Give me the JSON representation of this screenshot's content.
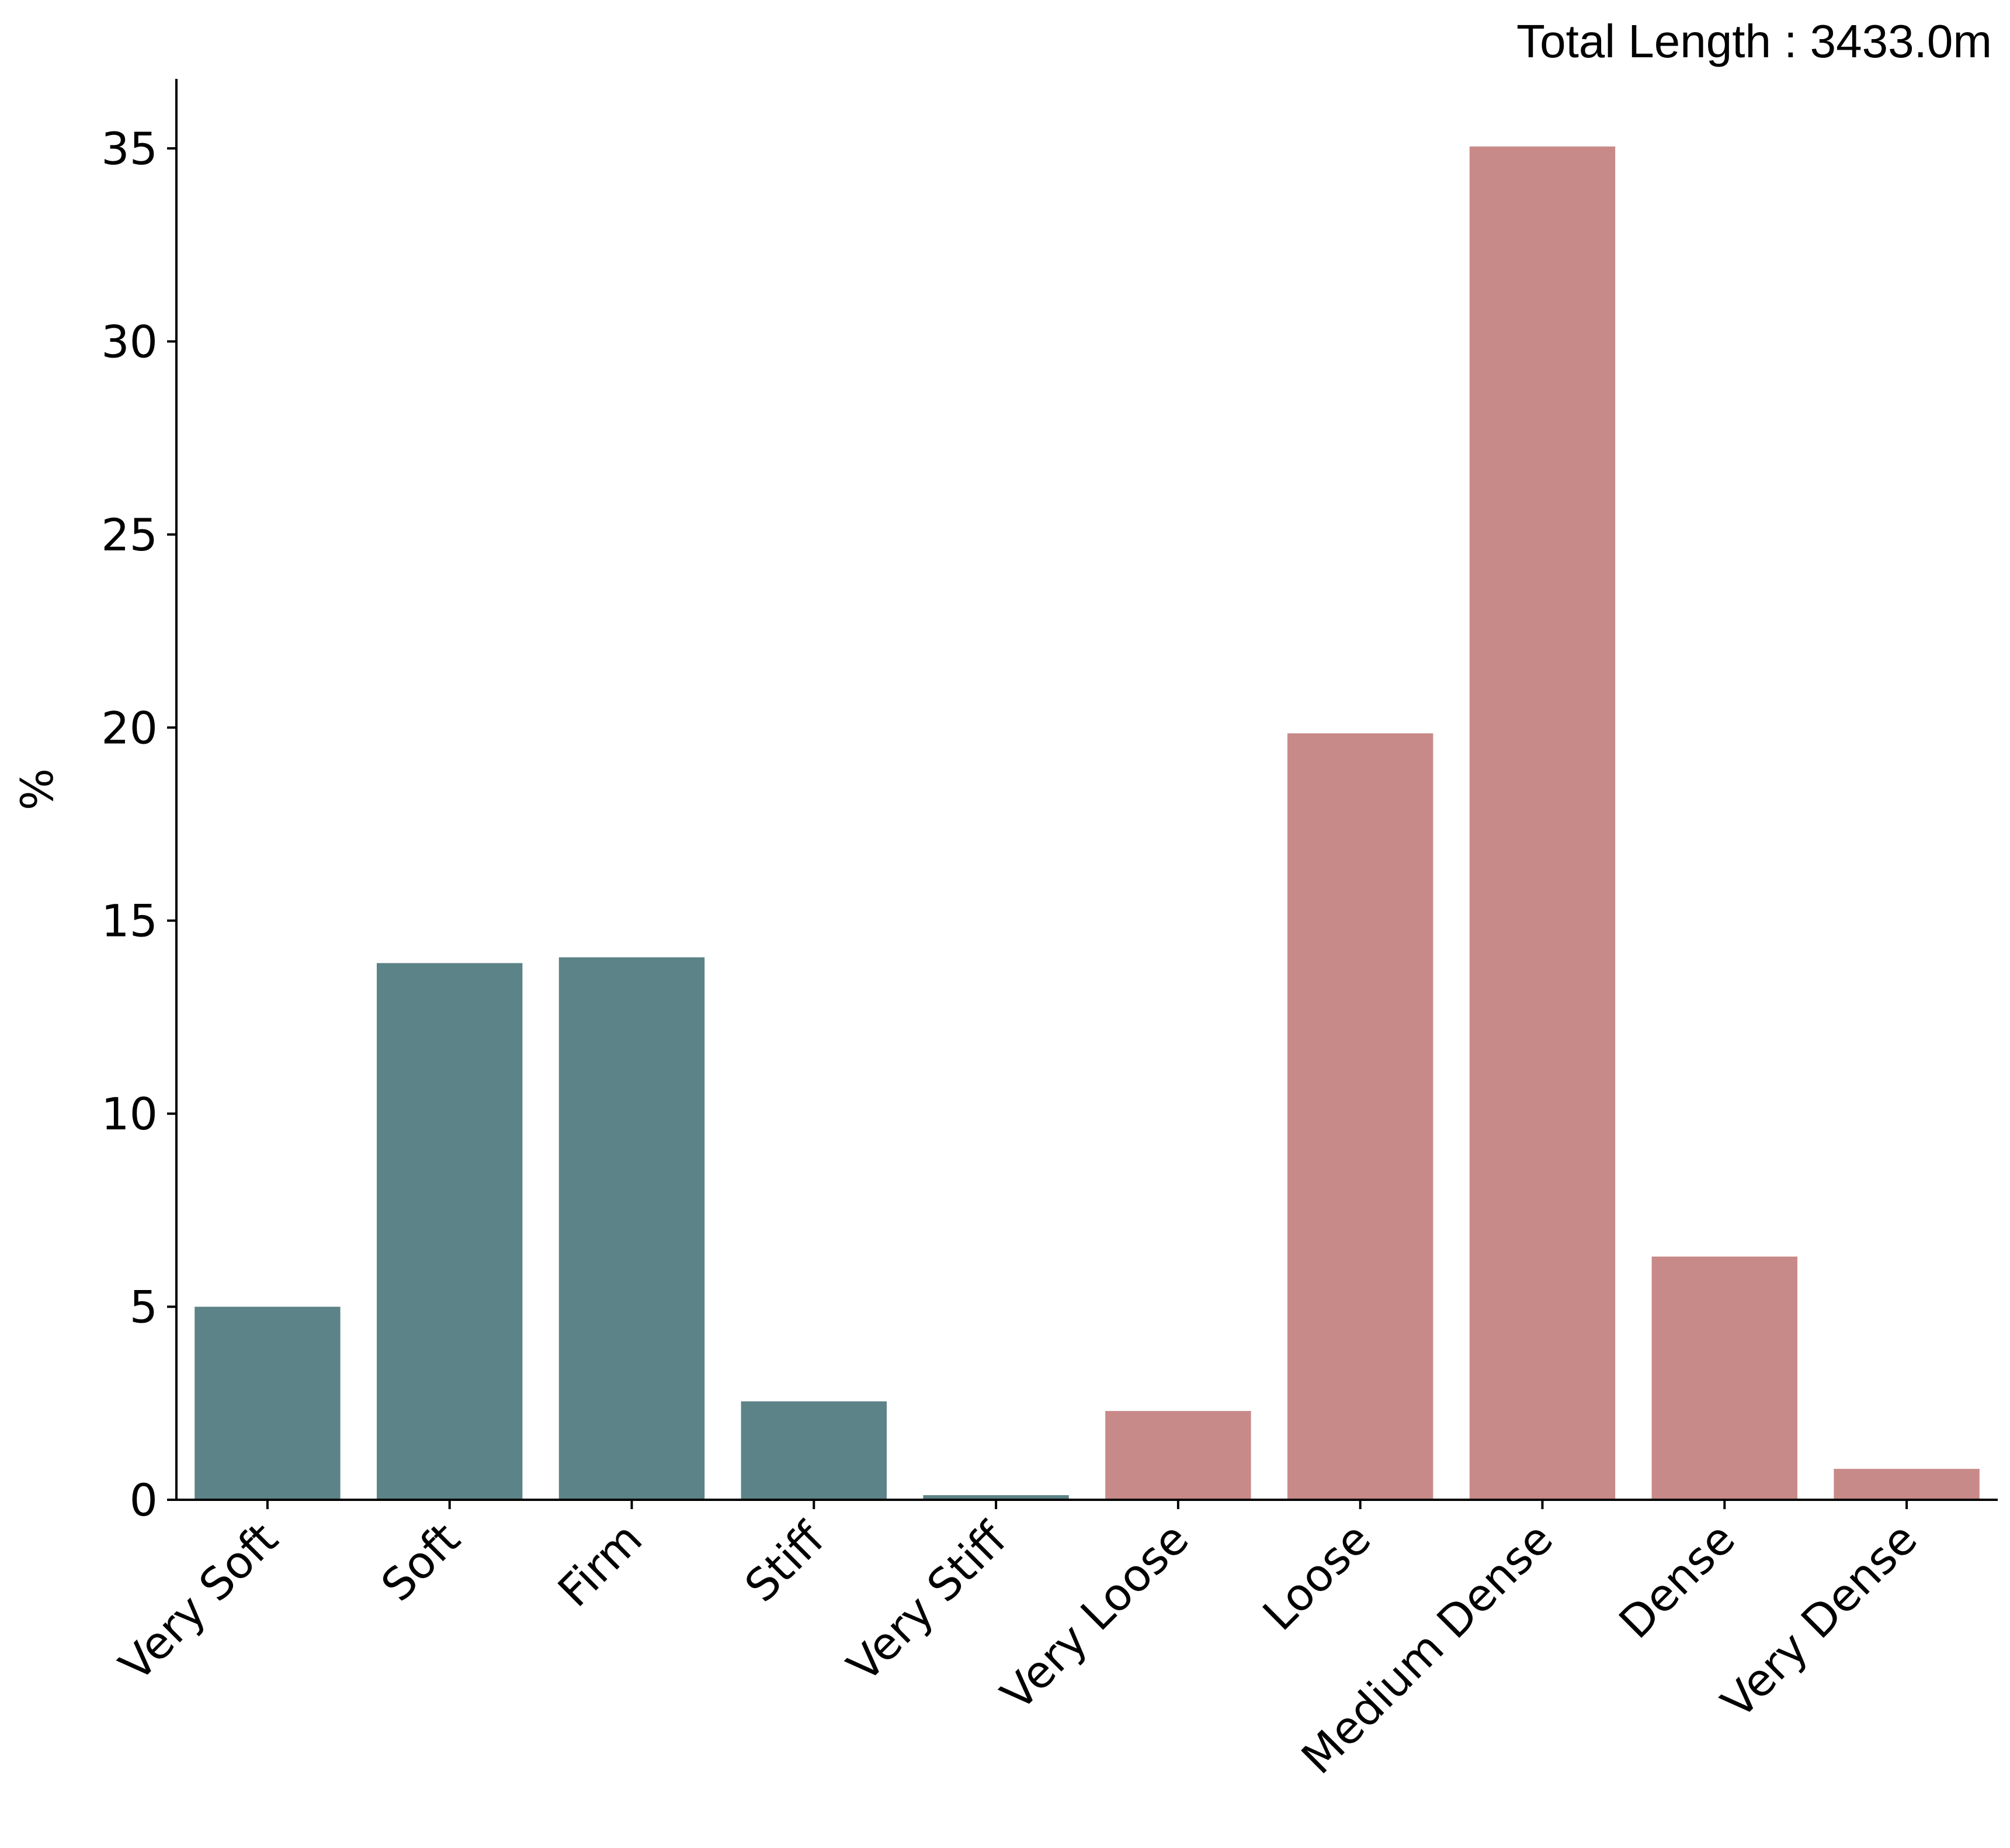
{
  "chart_data": {
    "type": "bar",
    "categories": [
      "Very Soft",
      "Soft",
      "Firm",
      "Stiff",
      "Very Stiff",
      "Very Loose",
      "Loose",
      "Medium Dense",
      "Dense",
      "Very Dense"
    ],
    "values": [
      5.0,
      13.9,
      14.05,
      2.55,
      0.12,
      2.3,
      19.85,
      35.05,
      6.3,
      0.8
    ],
    "bar_colors": [
      "#5c8387",
      "#5c8387",
      "#5c8387",
      "#5c8387",
      "#5c8387",
      "#c88a89",
      "#c88a89",
      "#c88a89",
      "#c88a89",
      "#c88a89"
    ],
    "ylabel": "%",
    "xlabel": "",
    "annotation": "Total Length : 3433.0m",
    "ylim": [
      0,
      36.8
    ],
    "yticks": [
      "0",
      "5",
      "10",
      "15",
      "20",
      "25",
      "30",
      "35"
    ],
    "grid": false,
    "legend": "none"
  }
}
